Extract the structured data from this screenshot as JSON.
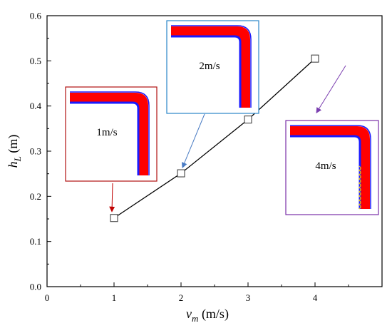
{
  "chart_data": {
    "type": "line",
    "title": "",
    "xlabel": {
      "main": "v",
      "sub": "m",
      "unit": " (m/s)"
    },
    "ylabel": {
      "main": "h",
      "sub": "L",
      "unit": " (m)"
    },
    "xlim": [
      0,
      5
    ],
    "ylim": [
      0,
      0.6
    ],
    "xticks": [
      0,
      1,
      2,
      3,
      4
    ],
    "yticks": [
      0.0,
      0.1,
      0.2,
      0.3,
      0.4,
      0.5,
      0.6
    ],
    "ytick_labels": [
      "0.0",
      "0.1",
      "0.2",
      "0.3",
      "0.4",
      "0.5",
      "0.6"
    ],
    "grid": false,
    "series": [
      {
        "x": [
          1,
          2,
          3,
          4
        ],
        "y": [
          0.152,
          0.251,
          0.37,
          0.505
        ],
        "color": "#000000",
        "marker": "square"
      }
    ],
    "insets": [
      {
        "label": "1m/s",
        "border_color": "#b01010",
        "arrow_color": "#c00000",
        "point_index": 0,
        "wavy": false
      },
      {
        "label": "2m/s",
        "border_color": "#2a86c8",
        "arrow_color": "#4a7cc4",
        "point_index": 1,
        "wavy": false
      },
      {
        "label": "4m/s",
        "border_color": "#7a2fa8",
        "arrow_color": "#7b3fb0",
        "point_index": 3,
        "wavy": true
      }
    ],
    "colors": {
      "fluid_main": "#ff0000",
      "fluid_interface": "#1a1aff",
      "interface_wave": "#e0c020"
    }
  }
}
